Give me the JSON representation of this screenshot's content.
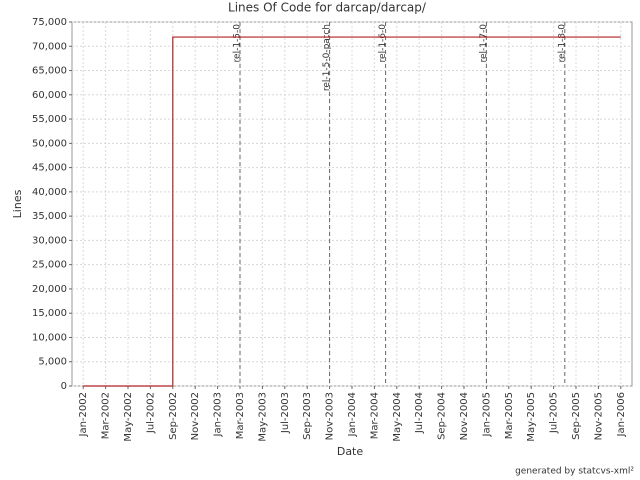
{
  "chart_data": {
    "type": "line",
    "title": "Lines Of Code for darcap/darcap/",
    "x_label": "Date",
    "y_label": "Lines",
    "footer": "generated by statcvs-xml²",
    "x": [
      "2002-01",
      "2002-09",
      "2002-09",
      "2006-01"
    ],
    "series": [
      {
        "name": "Lines",
        "color": "#b22222",
        "values": [
          0,
          0,
          71900,
          71900
        ]
      }
    ],
    "xlim": [
      "2001-12",
      "2006-02"
    ],
    "xticks": [
      {
        "value": "2002-01",
        "label": "Jan-2002"
      },
      {
        "value": "2002-03",
        "label": "Mar-2002"
      },
      {
        "value": "2002-05",
        "label": "May-2002"
      },
      {
        "value": "2002-07",
        "label": "Jul-2002"
      },
      {
        "value": "2002-09",
        "label": "Sep-2002"
      },
      {
        "value": "2002-11",
        "label": "Nov-2002"
      },
      {
        "value": "2003-01",
        "label": "Jan-2003"
      },
      {
        "value": "2003-03",
        "label": "Mar-2003"
      },
      {
        "value": "2003-05",
        "label": "May-2003"
      },
      {
        "value": "2003-07",
        "label": "Jul-2003"
      },
      {
        "value": "2003-09",
        "label": "Sep-2003"
      },
      {
        "value": "2003-11",
        "label": "Nov-2003"
      },
      {
        "value": "2004-01",
        "label": "Jan-2004"
      },
      {
        "value": "2004-03",
        "label": "Mar-2004"
      },
      {
        "value": "2004-05",
        "label": "May-2004"
      },
      {
        "value": "2004-07",
        "label": "Jul-2004"
      },
      {
        "value": "2004-09",
        "label": "Sep-2004"
      },
      {
        "value": "2004-11",
        "label": "Nov-2004"
      },
      {
        "value": "2005-01",
        "label": "Jan-2005"
      },
      {
        "value": "2005-03",
        "label": "Mar-2005"
      },
      {
        "value": "2005-05",
        "label": "May-2005"
      },
      {
        "value": "2005-07",
        "label": "Jul-2005"
      },
      {
        "value": "2005-09",
        "label": "Sep-2005"
      },
      {
        "value": "2005-11",
        "label": "Nov-2005"
      },
      {
        "value": "2006-01",
        "label": "Jan-2006"
      }
    ],
    "ylim": [
      0,
      75000
    ],
    "yticks": [
      0,
      {
        "value": 5000,
        "label": "5,000"
      },
      {
        "value": 10000,
        "label": "10,000"
      },
      {
        "value": 15000,
        "label": "15,000"
      },
      {
        "value": 20000,
        "label": "20,000"
      },
      {
        "value": 25000,
        "label": "25,000"
      },
      {
        "value": 30000,
        "label": "30,000"
      },
      {
        "value": 35000,
        "label": "35,000"
      },
      {
        "value": 40000,
        "label": "40,000"
      },
      {
        "value": 45000,
        "label": "45,000"
      },
      {
        "value": 50000,
        "label": "50,000"
      },
      {
        "value": 55000,
        "label": "55,000"
      },
      {
        "value": 60000,
        "label": "60,000"
      },
      {
        "value": 65000,
        "label": "65,000"
      },
      {
        "value": 70000,
        "label": "70,000"
      },
      {
        "value": 75000,
        "label": "75,000"
      }
    ],
    "markers": [
      {
        "x": "2003-03",
        "label": "rel-1-5-0"
      },
      {
        "x": "2003-11",
        "label": "rel-1-5-0-patch"
      },
      {
        "x": "2004-04",
        "label": "rel-1-6-0"
      },
      {
        "x": "2005-01",
        "label": "rel-1-7-0"
      },
      {
        "x": "2005-08",
        "label": "rel-1-8-0"
      }
    ],
    "grid": true
  }
}
